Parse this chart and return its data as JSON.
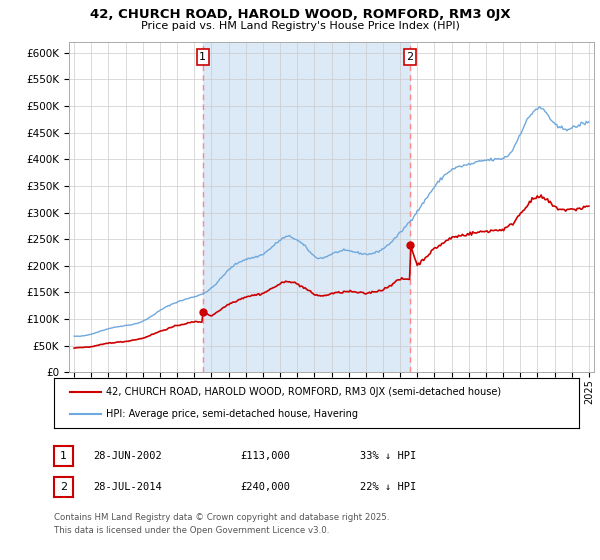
{
  "title": "42, CHURCH ROAD, HAROLD WOOD, ROMFORD, RM3 0JX",
  "subtitle": "Price paid vs. HM Land Registry's House Price Index (HPI)",
  "ylim": [
    0,
    620000
  ],
  "yticks": [
    0,
    50000,
    100000,
    150000,
    200000,
    250000,
    300000,
    350000,
    400000,
    450000,
    500000,
    550000,
    600000
  ],
  "ytick_labels": [
    "£0",
    "£50K",
    "£100K",
    "£150K",
    "£200K",
    "£250K",
    "£300K",
    "£350K",
    "£400K",
    "£450K",
    "£500K",
    "£550K",
    "£600K"
  ],
  "hpi_color": "#6fa8dc",
  "hpi_fill_color": "#dce9f7",
  "price_color": "#cc0000",
  "vline_color": "#ff8888",
  "grid_color": "#cccccc",
  "bg_color": "#ffffff",
  "legend_label_price": "42, CHURCH ROAD, HAROLD WOOD, ROMFORD, RM3 0JX (semi-detached house)",
  "legend_label_hpi": "HPI: Average price, semi-detached house, Havering",
  "sale1_date": 2002.5,
  "sale1_price": 113000,
  "sale2_date": 2014.58,
  "sale2_price": 240000,
  "footnote1": "Contains HM Land Registry data © Crown copyright and database right 2025.",
  "footnote2": "This data is licensed under the Open Government Licence v3.0.",
  "table_row1": [
    "1",
    "28-JUN-2002",
    "£113,000",
    "33% ↓ HPI"
  ],
  "table_row2": [
    "2",
    "28-JUL-2014",
    "£240,000",
    "22% ↓ HPI"
  ]
}
